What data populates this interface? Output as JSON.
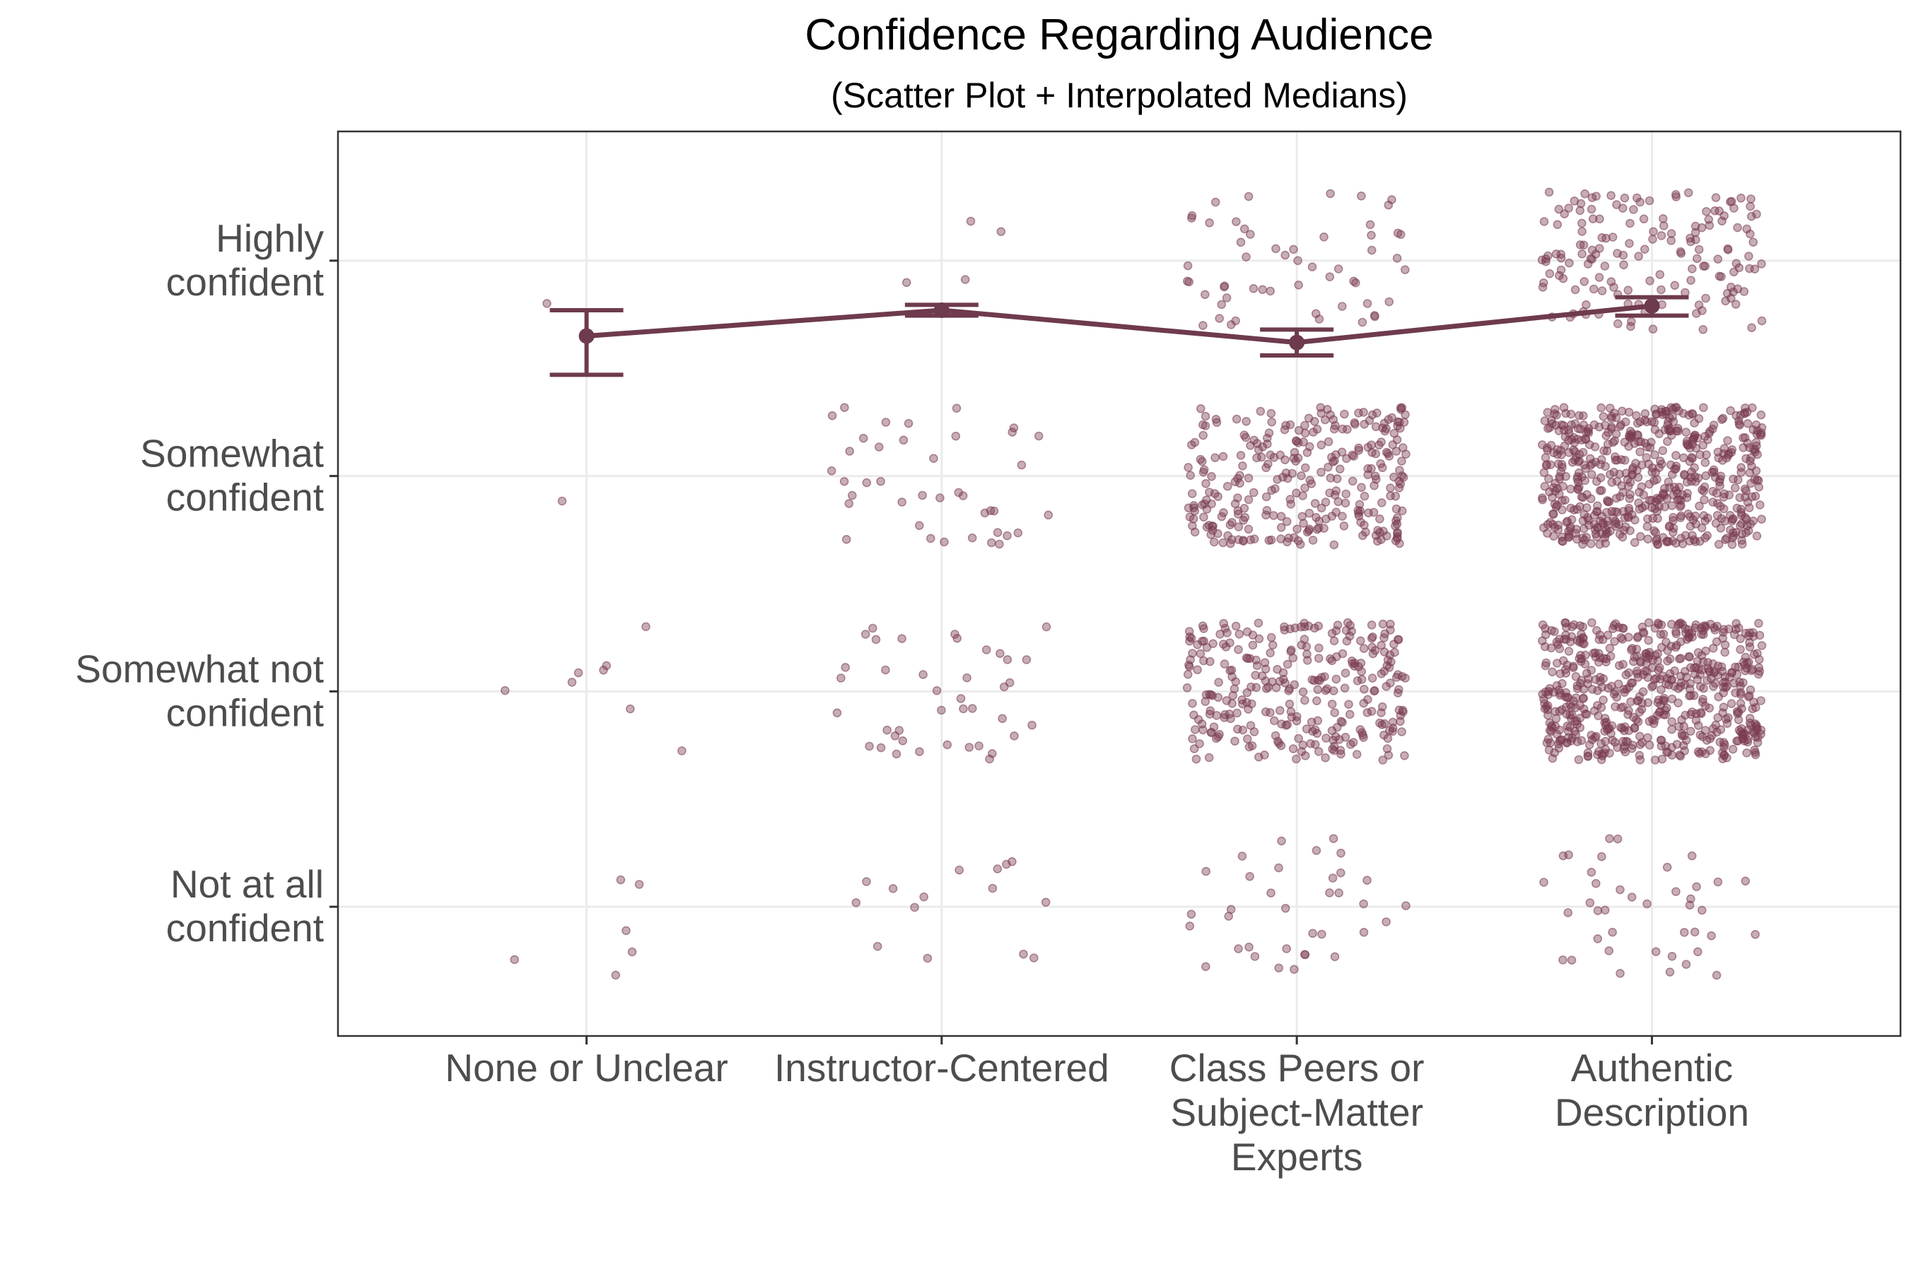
{
  "chart_data": {
    "type": "scatter",
    "title": "Confidence Regarding Audience",
    "subtitle": "(Scatter Plot + Interpolated Medians)",
    "xlabel": "",
    "ylabel": "",
    "categories": [
      "None or Unclear",
      "Instructor-Centered",
      "Class Peers or Subject-Matter Experts",
      "Authentic Description"
    ],
    "category_label_lines": [
      [
        "None or Unclear"
      ],
      [
        "Instructor-Centered"
      ],
      [
        "Class Peers or",
        "Subject-Matter",
        "Experts"
      ],
      [
        "Authentic",
        "Description"
      ]
    ],
    "y_levels": [
      "Not at all confident",
      "Somewhat not confident",
      "Somewhat confident",
      "Highly confident"
    ],
    "y_level_label_lines": [
      [
        "Not at all",
        "confident"
      ],
      [
        "Somewhat not",
        "confident"
      ],
      [
        "Somewhat",
        "confident"
      ],
      [
        "Highly",
        "confident"
      ]
    ],
    "y_values": [
      1,
      2,
      3,
      4
    ],
    "ylim": [
      0.4,
      4.6
    ],
    "grid": true,
    "jitter_counts": [
      [
        6,
        15,
        35,
        40
      ],
      [
        8,
        40,
        300,
        600
      ],
      [
        1,
        40,
        300,
        600
      ],
      [
        1,
        4,
        55,
        160
      ]
    ],
    "medians": {
      "name": "Interpolated median",
      "values": [
        3.65,
        3.77,
        3.62,
        3.79
      ],
      "ci_low": [
        3.47,
        3.745,
        3.56,
        3.745
      ],
      "ci_high": [
        3.77,
        3.795,
        3.68,
        3.83
      ]
    },
    "colors": {
      "points": "#7a3b52",
      "median_line": "#6e3a4e",
      "grid": "#ebebeb",
      "axis": "#333333"
    }
  }
}
